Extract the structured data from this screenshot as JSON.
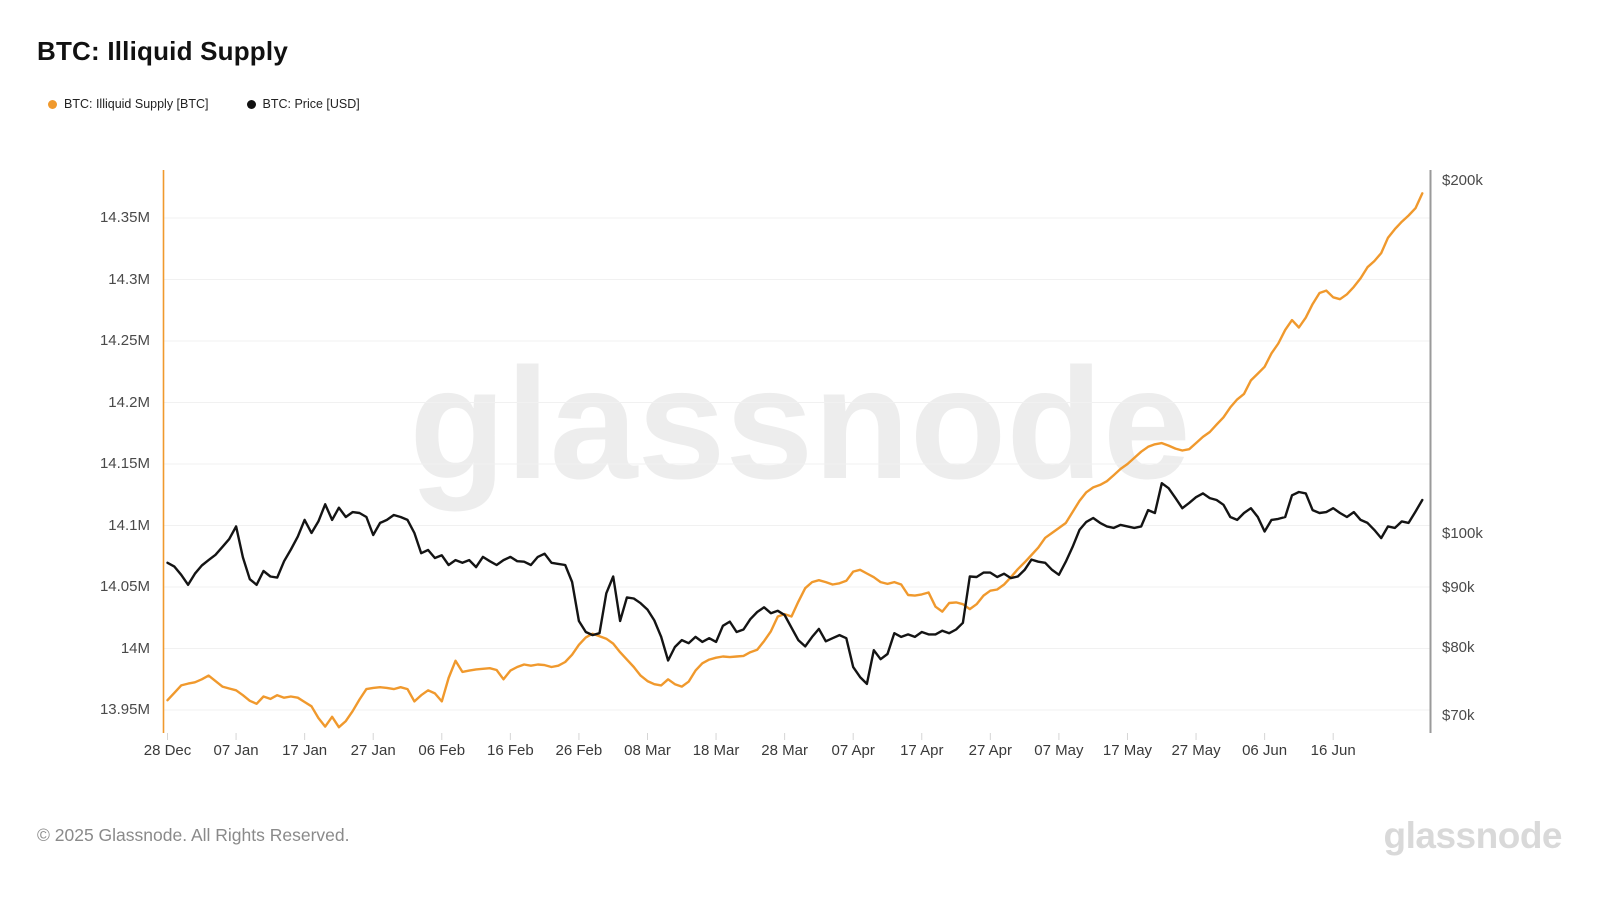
{
  "header": {
    "title": "BTC: Illiquid Supply"
  },
  "legend": {
    "items": [
      {
        "label": "BTC: Illiquid Supply [BTC]",
        "color": "#F0992D"
      },
      {
        "label": "BTC: Price [USD]",
        "color": "#111111"
      }
    ]
  },
  "watermark_text": "glassnode",
  "footer": {
    "copyright": "© 2025 Glassnode. All Rights Reserved.",
    "brand": "glassnode"
  },
  "chart_data": {
    "type": "line",
    "title": "BTC: Illiquid Supply",
    "grid": "horizontal-only",
    "x_axis": {
      "tick_labels": [
        "28 Dec",
        "07 Jan",
        "17 Jan",
        "27 Jan",
        "06 Feb",
        "16 Feb",
        "26 Feb",
        "08 Mar",
        "18 Mar",
        "28 Mar",
        "07 Apr",
        "17 Apr",
        "27 Apr",
        "07 May",
        "17 May",
        "27 May",
        "06 Jun",
        "16 Jun"
      ],
      "tick_days": [
        0,
        10,
        20,
        30,
        40,
        50,
        60,
        70,
        80,
        90,
        100,
        110,
        120,
        130,
        140,
        150,
        160,
        170
      ],
      "start_label": "28 Dec",
      "days_shown": 184
    },
    "y_left_axis": {
      "series": "BTC: Illiquid Supply [BTC]",
      "scale": "linear",
      "unit": "M BTC",
      "tick_labels": [
        "13.95M",
        "14M",
        "14.05M",
        "14.1M",
        "14.15M",
        "14.2M",
        "14.25M",
        "14.3M",
        "14.35M"
      ],
      "tick_values": [
        13.95,
        14.0,
        14.05,
        14.1,
        14.15,
        14.2,
        14.25,
        14.3,
        14.35
      ],
      "axis_color": "#F0992D"
    },
    "y_right_axis": {
      "series": "BTC: Price [USD]",
      "scale": "log",
      "unit": "USD (thousands)",
      "tick_labels": [
        "$200k",
        "$100k",
        "$90k",
        "$80k",
        "$70k"
      ],
      "tick_values": [
        200,
        100,
        90,
        80,
        70
      ],
      "axis_color": "#9a9a9a"
    },
    "series": [
      {
        "name": "BTC: Illiquid Supply [BTC]",
        "color": "#F0992D",
        "axis": "left",
        "unit": "M BTC",
        "day_step": 1,
        "values": [
          13.958,
          13.964,
          13.97,
          13.9715,
          13.9725,
          13.975,
          13.978,
          13.9735,
          13.969,
          13.9675,
          13.966,
          13.962,
          13.9575,
          13.955,
          13.961,
          13.959,
          13.962,
          13.96,
          13.961,
          13.96,
          13.9565,
          13.953,
          13.9435,
          13.9365,
          13.9445,
          13.936,
          13.941,
          13.949,
          13.9585,
          13.967,
          13.968,
          13.9685,
          13.968,
          13.967,
          13.9685,
          13.967,
          13.957,
          13.962,
          13.966,
          13.9635,
          13.957,
          13.976,
          13.99,
          13.981,
          13.982,
          13.983,
          13.9835,
          13.984,
          13.9825,
          13.975,
          13.982,
          13.985,
          13.987,
          13.986,
          13.987,
          13.9865,
          13.985,
          13.986,
          13.989,
          13.995,
          14.003,
          14.009,
          14.012,
          14.01,
          14.008,
          14.004,
          13.997,
          13.991,
          13.985,
          13.978,
          13.9735,
          13.971,
          13.97,
          13.975,
          13.971,
          13.969,
          13.973,
          13.982,
          13.988,
          13.991,
          13.9925,
          13.9935,
          13.993,
          13.9935,
          13.994,
          13.997,
          13.999,
          14.006,
          14.014,
          14.026,
          14.028,
          14.026,
          14.038,
          14.049,
          14.054,
          14.0555,
          14.054,
          14.052,
          14.053,
          14.055,
          14.0625,
          14.064,
          14.061,
          14.058,
          14.054,
          14.0525,
          14.054,
          14.052,
          14.0435,
          14.043,
          14.044,
          14.0455,
          14.034,
          14.03,
          14.037,
          14.0375,
          14.036,
          14.032,
          14.036,
          14.043,
          14.047,
          14.048,
          14.052,
          14.058,
          14.0645,
          14.07,
          14.076,
          14.082,
          14.09,
          14.094,
          14.098,
          14.102,
          14.111,
          14.12,
          14.127,
          14.131,
          14.133,
          14.136,
          14.141,
          14.146,
          14.15,
          14.155,
          14.16,
          14.164,
          14.166,
          14.167,
          14.165,
          14.1625,
          14.161,
          14.162,
          14.167,
          14.172,
          14.176,
          14.182,
          14.188,
          14.196,
          14.2025,
          14.207,
          14.218,
          14.2235,
          14.229,
          14.24,
          14.248,
          14.259,
          14.267,
          14.261,
          14.269,
          14.28,
          14.289,
          14.291,
          14.2855,
          14.284,
          14.288,
          14.294,
          14.301,
          14.31,
          14.315,
          14.3215,
          14.334,
          14.341,
          14.347,
          14.352,
          14.358,
          14.37
        ]
      },
      {
        "name": "BTC: Price [USD]",
        "color": "#141414",
        "axis": "right",
        "unit": "k USD",
        "day_step": 1,
        "values": [
          94.5,
          93.8,
          92.3,
          90.5,
          92.5,
          94.0,
          95.0,
          96.0,
          97.5,
          99.0,
          101.5,
          95.5,
          91.5,
          90.5,
          93.0,
          92.0,
          91.8,
          94.8,
          97.0,
          99.5,
          102.8,
          100.2,
          102.5,
          106.0,
          102.8,
          105.3,
          103.4,
          104.4,
          104.2,
          103.4,
          99.8,
          102.2,
          102.8,
          103.8,
          103.4,
          102.8,
          100.2,
          96.3,
          96.9,
          95.4,
          95.9,
          94.1,
          95.0,
          94.5,
          95.0,
          93.7,
          95.6,
          94.8,
          94.1,
          95.0,
          95.6,
          94.8,
          94.7,
          94.1,
          95.6,
          96.2,
          94.5,
          94.3,
          94.1,
          91.0,
          84.3,
          82.5,
          82.0,
          82.3,
          89.0,
          92.0,
          84.3,
          88.3,
          88.1,
          87.3,
          86.2,
          84.4,
          81.7,
          78.0,
          80.1,
          81.2,
          80.7,
          81.7,
          80.9,
          81.5,
          80.9,
          83.5,
          84.2,
          82.5,
          82.9,
          84.6,
          85.8,
          86.6,
          85.6,
          86.0,
          85.3,
          83.2,
          81.2,
          80.2,
          81.7,
          83.0,
          81.0,
          81.5,
          82.0,
          81.5,
          77.0,
          75.5,
          74.5,
          79.6,
          78.2,
          79.0,
          82.3,
          81.7,
          82.1,
          81.7,
          82.5,
          82.1,
          82.1,
          82.7,
          82.3,
          82.9,
          84.0,
          92.0,
          91.9,
          92.7,
          92.7,
          91.9,
          92.5,
          91.7,
          92.0,
          93.2,
          95.1,
          94.7,
          94.5,
          93.2,
          92.3,
          94.7,
          97.5,
          100.8,
          102.4,
          103.2,
          102.2,
          101.5,
          101.2,
          101.8,
          101.5,
          101.2,
          101.5,
          104.8,
          104.2,
          110.5,
          109.4,
          107.3,
          105.2,
          106.3,
          107.5,
          108.3,
          107.3,
          106.9,
          105.9,
          103.4,
          102.8,
          104.2,
          105.2,
          103.4,
          100.5,
          102.8,
          103.0,
          103.4,
          107.9,
          108.6,
          108.3,
          104.8,
          104.2,
          104.4,
          105.2,
          104.2,
          103.4,
          104.4,
          102.8,
          102.2,
          100.8,
          99.2,
          101.5,
          101.2,
          102.5,
          102.2,
          104.5,
          106.9
        ]
      }
    ]
  }
}
